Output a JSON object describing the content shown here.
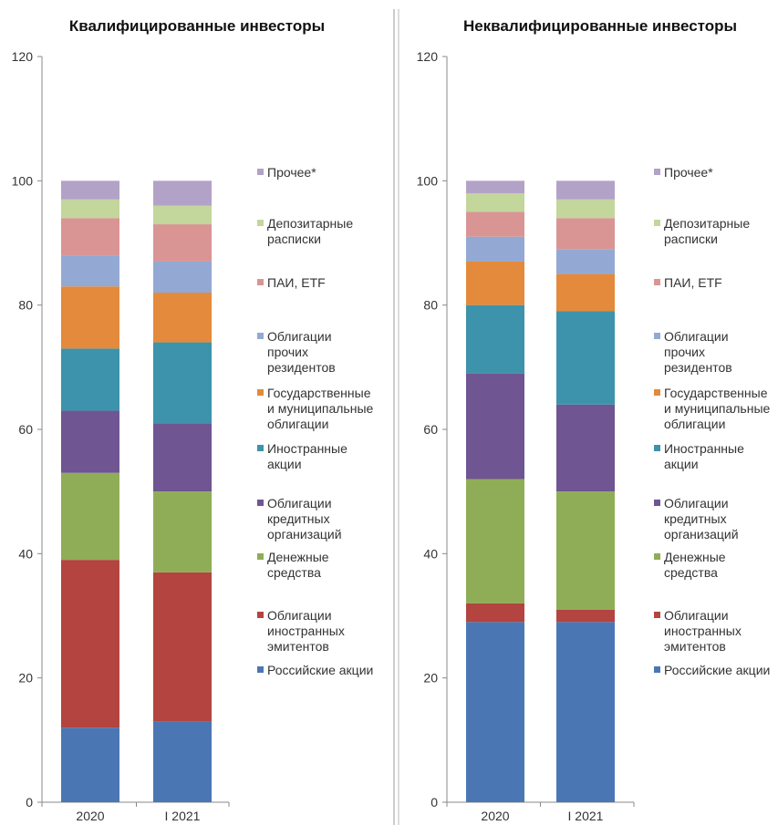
{
  "chart_data": [
    {
      "type": "bar",
      "stacked": true,
      "title": "Квалифицированные инвесторы",
      "categories": [
        "2020",
        "I 2021"
      ],
      "ylim": [
        0,
        120
      ],
      "yticks": [
        0,
        20,
        40,
        60,
        80,
        100,
        120
      ],
      "grid": false,
      "legend_position": "right",
      "series": [
        {
          "name": "Российские акции",
          "color": "#4a77b4",
          "values": [
            12,
            13
          ]
        },
        {
          "name": "Облигации иностранных эмитентов",
          "color": "#b34440",
          "values": [
            27,
            24
          ]
        },
        {
          "name": "Денежные средства",
          "color": "#8fad56",
          "values": [
            14,
            13
          ]
        },
        {
          "name": "Облигации кредитных организаций",
          "color": "#6f5591",
          "values": [
            10,
            11
          ]
        },
        {
          "name": "Иностранные акции",
          "color": "#3c93ab",
          "values": [
            10,
            13
          ]
        },
        {
          "name": "Государственные и муниципальные облигации",
          "color": "#e38a3c",
          "values": [
            10,
            8
          ]
        },
        {
          "name": "Облигации прочих резидентов",
          "color": "#93a9d3",
          "values": [
            5,
            5
          ]
        },
        {
          "name": "ПАИ, ETF",
          "color": "#d99594",
          "values": [
            6,
            6
          ]
        },
        {
          "name": "Депозитарные расписки",
          "color": "#c3d69b",
          "values": [
            3,
            3
          ]
        },
        {
          "name": "Прочее*",
          "color": "#b3a2c7",
          "values": [
            3,
            4
          ]
        }
      ]
    },
    {
      "type": "bar",
      "stacked": true,
      "title": "Неквалифицированные инвесторы",
      "categories": [
        "2020",
        "I 2021"
      ],
      "ylim": [
        0,
        120
      ],
      "yticks": [
        0,
        20,
        40,
        60,
        80,
        100,
        120
      ],
      "grid": false,
      "legend_position": "right",
      "series": [
        {
          "name": "Российские акции",
          "color": "#4a77b4",
          "values": [
            29,
            29
          ]
        },
        {
          "name": "Облигации иностранных эмитентов",
          "color": "#b34440",
          "values": [
            3,
            2
          ]
        },
        {
          "name": "Денежные средства",
          "color": "#8fad56",
          "values": [
            20,
            19
          ]
        },
        {
          "name": "Облигации кредитных организаций",
          "color": "#6f5591",
          "values": [
            17,
            14
          ]
        },
        {
          "name": "Иностранные акции",
          "color": "#3c93ab",
          "values": [
            11,
            15
          ]
        },
        {
          "name": "Государственные и муниципальные облигации",
          "color": "#e38a3c",
          "values": [
            7,
            6
          ]
        },
        {
          "name": "Облигации прочих резидентов",
          "color": "#93a9d3",
          "values": [
            4,
            4
          ]
        },
        {
          "name": "ПАИ, ETF",
          "color": "#d99594",
          "values": [
            4,
            5
          ]
        },
        {
          "name": "Депозитарные расписки",
          "color": "#c3d69b",
          "values": [
            3,
            3
          ]
        },
        {
          "name": "Прочее*",
          "color": "#b3a2c7",
          "values": [
            2,
            3
          ]
        }
      ]
    }
  ],
  "legend": {
    "items": [
      {
        "lines": [
          "Прочее*"
        ],
        "color": "#b3a2c7"
      },
      {
        "lines": [
          "Депозитарные",
          "расписки"
        ],
        "color": "#c3d69b"
      },
      {
        "lines": [
          "ПАИ, ETF"
        ],
        "color": "#d99594"
      },
      {
        "lines": [
          "Облигации",
          "прочих",
          "резидентов"
        ],
        "color": "#93a9d3"
      },
      {
        "lines": [
          "Государственные",
          "и муниципальные",
          "облигации"
        ],
        "color": "#e38a3c"
      },
      {
        "lines": [
          "Иностранные",
          "акции"
        ],
        "color": "#3c93ab"
      },
      {
        "lines": [
          "Облигации",
          "кредитных",
          "организаций"
        ],
        "color": "#6f5591"
      },
      {
        "lines": [
          "Денежные",
          "средства"
        ],
        "color": "#8fad56"
      },
      {
        "lines": [
          "Облигации",
          "иностранных",
          "эмитентов"
        ],
        "color": "#b34440"
      },
      {
        "lines": [
          "Российские акции"
        ],
        "color": "#4a77b4"
      }
    ]
  }
}
